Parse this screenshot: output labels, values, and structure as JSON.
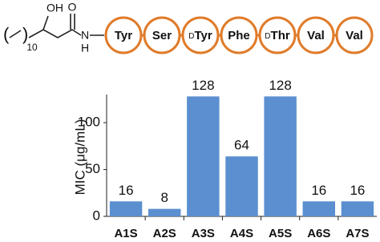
{
  "structure": {
    "atoms": [
      "OH",
      "O",
      "N",
      "H"
    ],
    "repeat": "10",
    "residues": [
      {
        "name": "Tyr"
      },
      {
        "name": "Ser"
      },
      {
        "prefix": "D",
        "name": "Tyr"
      },
      {
        "name": "Phe"
      },
      {
        "prefix": "D",
        "name": "Thr"
      },
      {
        "name": "Val"
      },
      {
        "name": "Val"
      }
    ]
  },
  "chart_data": {
    "type": "bar",
    "y_label": "MIC (μg/mL)",
    "categories": [
      "A1S",
      "A2S",
      "A3S",
      "A4S",
      "A5S",
      "A6S",
      "A7S"
    ],
    "values": [
      16,
      8,
      128,
      64,
      128,
      16,
      16
    ],
    "color": "#5b8fd0",
    "ylim": [
      0,
      130
    ],
    "yticks": [
      0,
      50,
      100
    ],
    "grid": false
  }
}
